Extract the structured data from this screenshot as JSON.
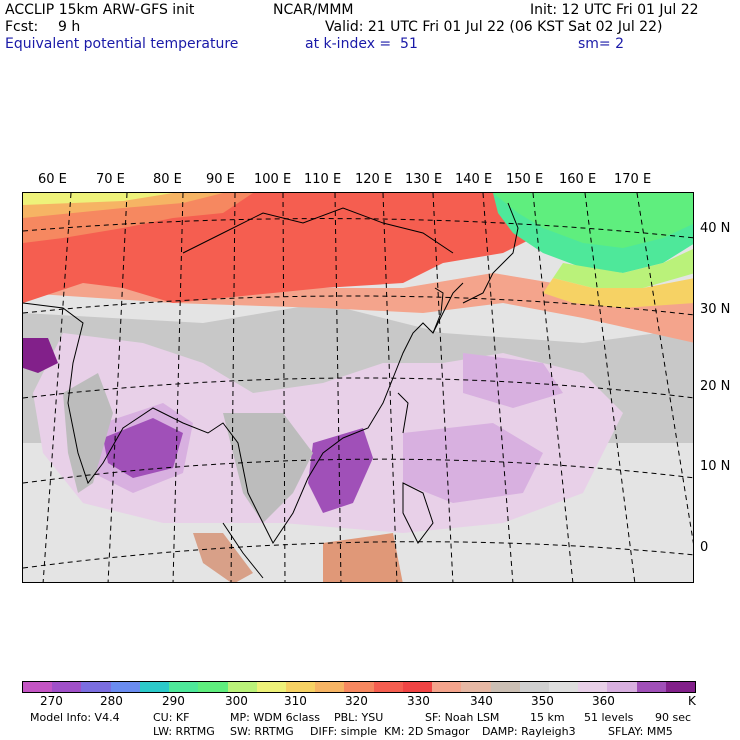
{
  "header": {
    "model_line": "ACCLIP 15km ARW-GFS init",
    "center": "NCAR/MMM",
    "init": "Init: 12 UTC Fri 01 Jul 22",
    "fcst_label": "Fcst:",
    "fcst_value": "9 h",
    "valid": "Valid: 21 UTC Fri 01 Jul 22 (06 KST Sat 02 Jul 22)",
    "field": "Equivalent potential temperature",
    "level": "at k-index =  51",
    "smooth": "sm= 2"
  },
  "map": {
    "lon_labels": [
      "60 E",
      "70 E",
      "80 E",
      "90 E",
      "100 E",
      "110 E",
      "120 E",
      "130 E",
      "140 E",
      "150 E",
      "160 E",
      "170 E"
    ],
    "lat_labels": [
      "40 N",
      "30 N",
      "20 N",
      "10 N",
      "0"
    ]
  },
  "colorbar": {
    "colors": [
      "#c455c4",
      "#a050c8",
      "#7b6ee0",
      "#6a8cf0",
      "#2ccaca",
      "#4ee89a",
      "#5fee7e",
      "#baf27a",
      "#eef27a",
      "#f6d264",
      "#f6b464",
      "#f68860",
      "#f55e50",
      "#f04444",
      "#f4a48c",
      "#e6b8a4",
      "#cbbfb4",
      "#d0d0d0",
      "#dedede",
      "#e8d0e8",
      "#d8b0e0",
      "#a050b8",
      "#82208a"
    ],
    "ticks": [
      "270",
      "280",
      "290",
      "300",
      "310",
      "320",
      "330",
      "340",
      "350",
      "360"
    ],
    "unit": "K"
  },
  "footer": {
    "line1": [
      "Model Info: V4.4",
      "CU: KF",
      "MP: WDM 6class",
      "PBL: YSU",
      "SF: Noah LSM",
      "15 km",
      "51 levels",
      "90 sec"
    ],
    "line2": [
      "LW: RRTMG",
      "SW: RRTMG",
      "DIFF: simple",
      "KM: 2D Smagor",
      "DAMP: Rayleigh3",
      "SFLAY: MM5"
    ]
  }
}
